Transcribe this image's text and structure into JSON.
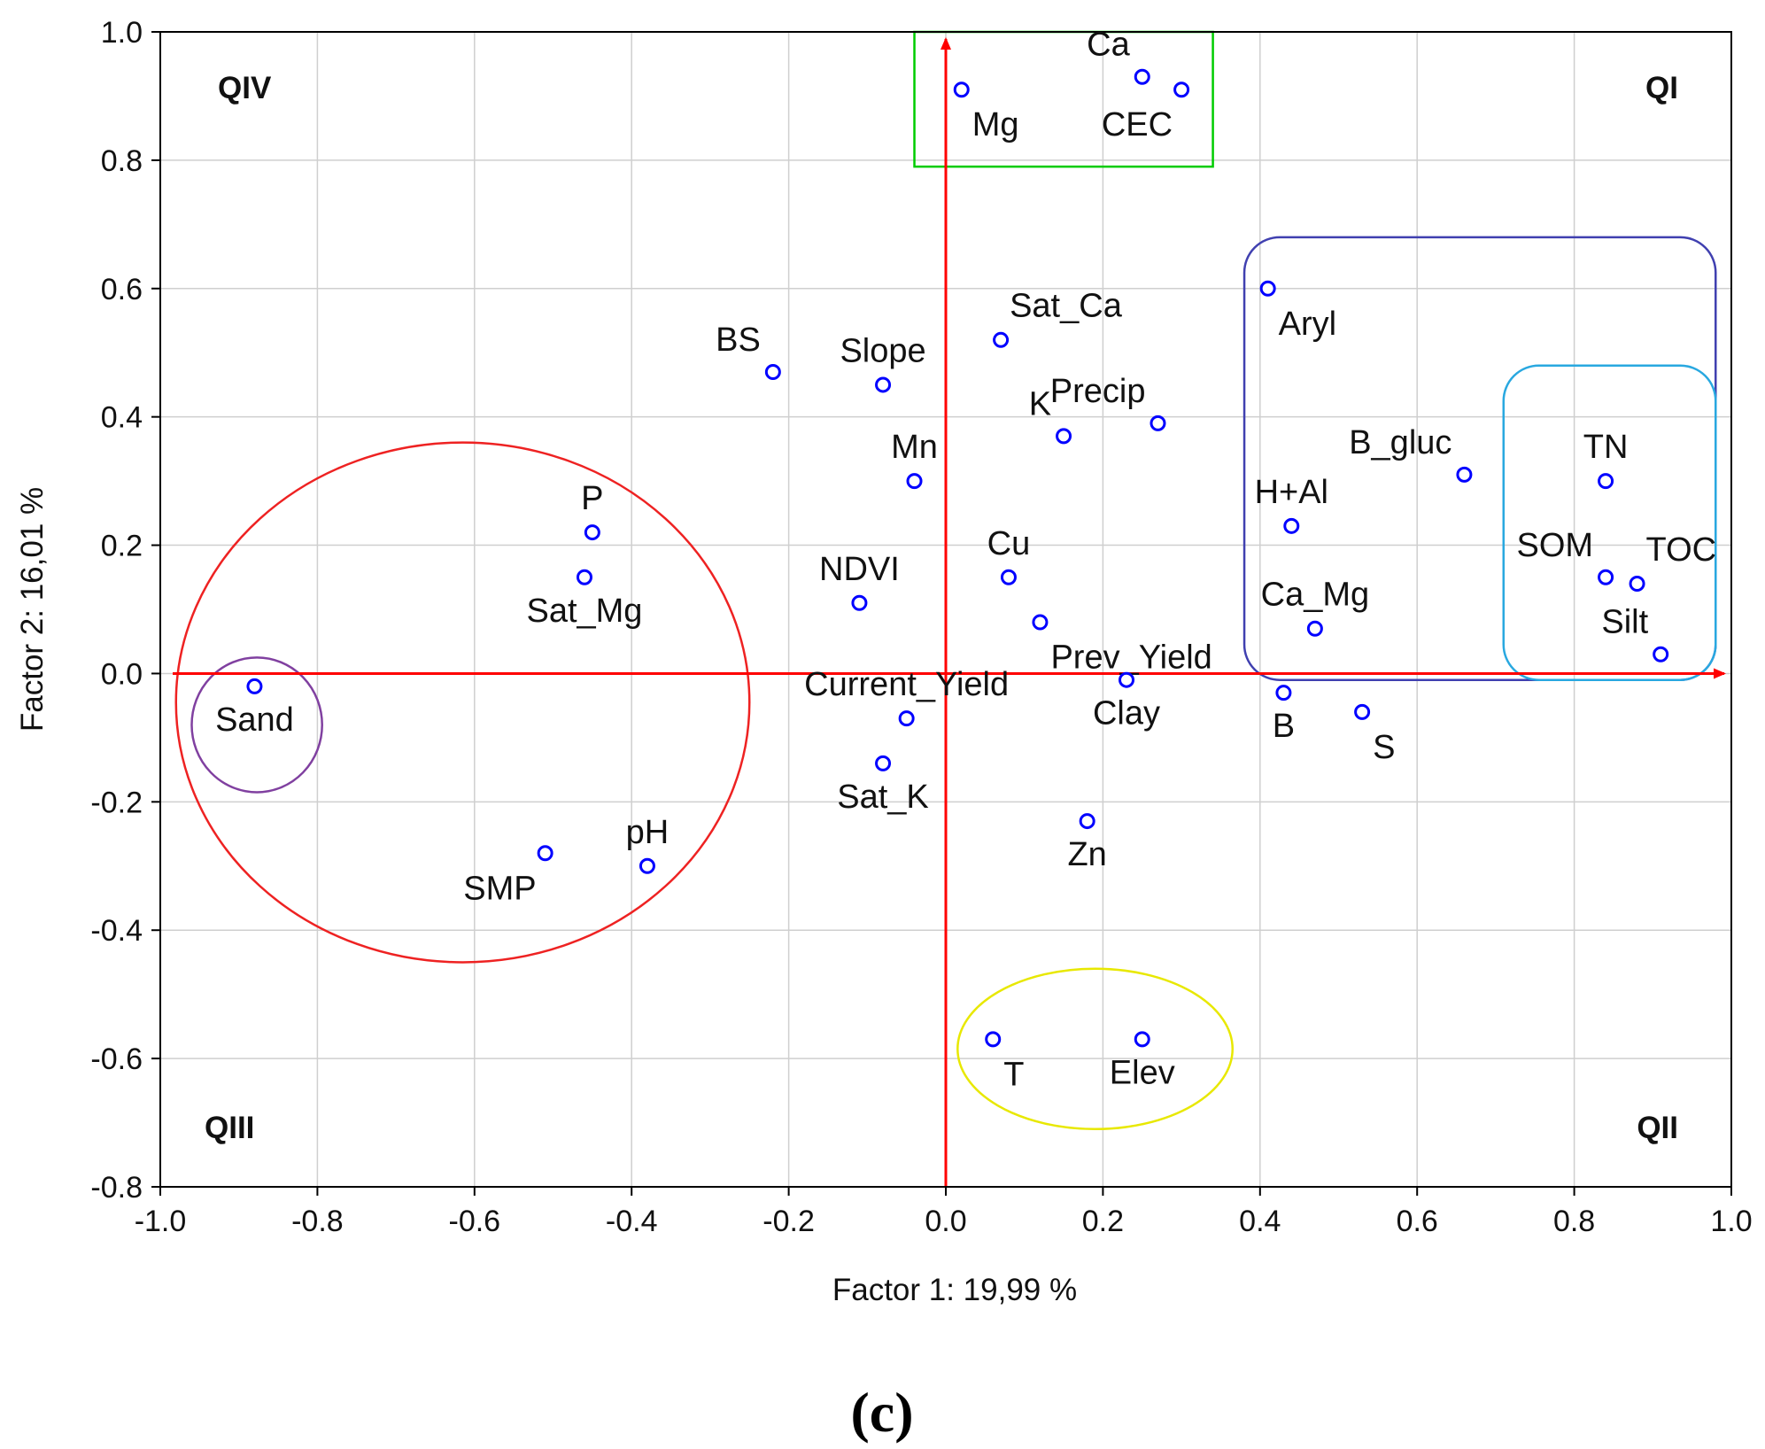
{
  "chart_data": {
    "type": "scatter",
    "panel_label": "(c)",
    "xlabel": "Factor 1: 19,99 %",
    "ylabel": "Factor 2: 16,01 %",
    "xlim": [
      -1.0,
      1.0
    ],
    "ylim": [
      -0.8,
      1.0
    ],
    "grid": true,
    "x_ticks": [
      "-1.0",
      "-0.8",
      "-0.6",
      "-0.4",
      "-0.2",
      "0.0",
      "0.2",
      "0.4",
      "0.6",
      "0.8",
      "1.0"
    ],
    "y_ticks": [
      "1.0",
      "0.8",
      "0.6",
      "0.4",
      "0.2",
      "0.0",
      "-0.2",
      "-0.4",
      "-0.6",
      "-0.8"
    ],
    "marker_color": "#0000ff",
    "axis_arrow_color": "#ff0000",
    "quadrants": [
      {
        "label": "QI",
        "position": "top-right"
      },
      {
        "label": "QII",
        "position": "bottom-right"
      },
      {
        "label": "QIII",
        "position": "bottom-left"
      },
      {
        "label": "QIV",
        "position": "top-left"
      }
    ],
    "points": [
      {
        "label": "Ca",
        "x": 0.25,
        "y": 0.93,
        "label_side": "above-left"
      },
      {
        "label": "CEC",
        "x": 0.3,
        "y": 0.91,
        "label_side": "below-left"
      },
      {
        "label": "Mg",
        "x": 0.02,
        "y": 0.91,
        "label_side": "below-right"
      },
      {
        "label": "Aryl",
        "x": 0.41,
        "y": 0.6,
        "label_side": "below-right"
      },
      {
        "label": "Sat_Ca",
        "x": 0.07,
        "y": 0.52,
        "label_side": "above-right"
      },
      {
        "label": "BS",
        "x": -0.22,
        "y": 0.47,
        "label_side": "above-left"
      },
      {
        "label": "Slope",
        "x": -0.08,
        "y": 0.45,
        "label_side": "above"
      },
      {
        "label": "Precip",
        "x": 0.27,
        "y": 0.39,
        "label_side": "above-left"
      },
      {
        "label": "K",
        "x": 0.15,
        "y": 0.37,
        "label_side": "above-left"
      },
      {
        "label": "B_gluc",
        "x": 0.66,
        "y": 0.31,
        "label_side": "above-left"
      },
      {
        "label": "TN",
        "x": 0.84,
        "y": 0.3,
        "label_side": "above"
      },
      {
        "label": "Mn",
        "x": -0.04,
        "y": 0.3,
        "label_side": "above"
      },
      {
        "label": "H+Al",
        "x": 0.44,
        "y": 0.23,
        "label_side": "above"
      },
      {
        "label": "P",
        "x": -0.45,
        "y": 0.22,
        "label_side": "above"
      },
      {
        "label": "Cu",
        "x": 0.08,
        "y": 0.15,
        "label_side": "above"
      },
      {
        "label": "Sat_Mg",
        "x": -0.46,
        "y": 0.15,
        "label_side": "below"
      },
      {
        "label": "SOM",
        "x": 0.84,
        "y": 0.15,
        "label_side": "above-left"
      },
      {
        "label": "TOC",
        "x": 0.88,
        "y": 0.14,
        "label_side": "above-right"
      },
      {
        "label": "NDVI",
        "x": -0.11,
        "y": 0.11,
        "label_side": "above"
      },
      {
        "label": "Prev_Yield",
        "x": 0.12,
        "y": 0.08,
        "label_side": "below-right"
      },
      {
        "label": "Ca_Mg",
        "x": 0.47,
        "y": 0.07,
        "label_side": "above"
      },
      {
        "label": "Silt",
        "x": 0.91,
        "y": 0.03,
        "label_side": "above-left"
      },
      {
        "label": "Clay",
        "x": 0.23,
        "y": -0.01,
        "label_side": "below"
      },
      {
        "label": "Sand",
        "x": -0.88,
        "y": -0.02,
        "label_side": "below"
      },
      {
        "label": "B",
        "x": 0.43,
        "y": -0.03,
        "label_side": "below"
      },
      {
        "label": "S",
        "x": 0.53,
        "y": -0.06,
        "label_side": "below-right"
      },
      {
        "label": "Current_Yield",
        "x": -0.05,
        "y": -0.07,
        "label_side": "above"
      },
      {
        "label": "Sat_K",
        "x": -0.08,
        "y": -0.14,
        "label_side": "below"
      },
      {
        "label": "Zn",
        "x": 0.18,
        "y": -0.23,
        "label_side": "below"
      },
      {
        "label": "SMP",
        "x": -0.51,
        "y": -0.28,
        "label_side": "below-left"
      },
      {
        "label": "pH",
        "x": -0.38,
        "y": -0.3,
        "label_side": "above"
      },
      {
        "label": "T",
        "x": 0.06,
        "y": -0.57,
        "label_side": "below-right"
      },
      {
        "label": "Elev",
        "x": 0.25,
        "y": -0.57,
        "label_side": "below"
      }
    ],
    "groups": [
      {
        "shape": "rect",
        "color": "#00cc00",
        "x0": -0.04,
        "x1": 0.34,
        "y0": 0.79,
        "y1": 1.0
      },
      {
        "shape": "roundrect",
        "color": "#4040b0",
        "x0": 0.38,
        "x1": 0.98,
        "y0": -0.01,
        "y1": 0.68
      },
      {
        "shape": "roundrect",
        "color": "#29a8e0",
        "x0": 0.71,
        "x1": 0.98,
        "y0": -0.01,
        "y1": 0.48
      },
      {
        "shape": "ellipse",
        "color": "#ee2222",
        "cx": -0.615,
        "cy": -0.045,
        "rx": 0.365,
        "ry": 0.405
      },
      {
        "shape": "ellipse",
        "color": "#8040a0",
        "cx": -0.877,
        "cy": -0.08,
        "rx": 0.083,
        "ry": 0.105
      },
      {
        "shape": "ellipse",
        "color": "#e8e800",
        "cx": 0.19,
        "cy": -0.585,
        "rx": 0.175,
        "ry": 0.125
      }
    ]
  }
}
